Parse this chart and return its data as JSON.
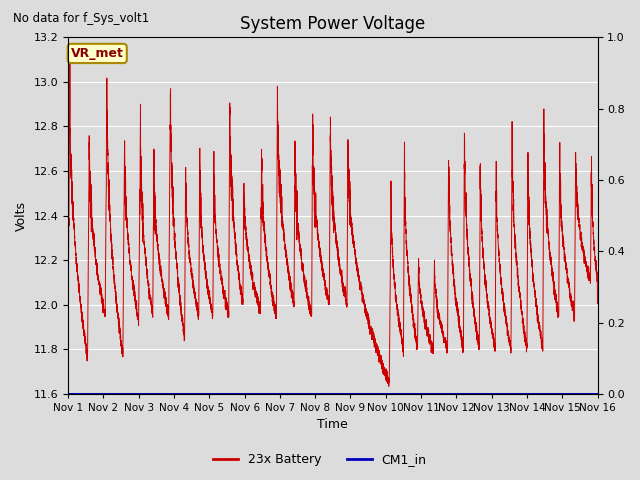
{
  "title": "System Power Voltage",
  "subtitle": "No data for f_Sys_volt1",
  "ylabel_left": "Volts",
  "xlabel": "Time",
  "ylim_left": [
    11.6,
    13.2
  ],
  "ylim_right": [
    0.0,
    1.0
  ],
  "yticks_left": [
    11.6,
    11.8,
    12.0,
    12.2,
    12.4,
    12.6,
    12.8,
    13.0,
    13.2
  ],
  "yticks_right": [
    0.0,
    0.2,
    0.4,
    0.6,
    0.8,
    1.0
  ],
  "xtick_labels": [
    "Nov 1",
    "Nov 2",
    "Nov 3",
    "Nov 4",
    "Nov 5",
    "Nov 6",
    "Nov 7",
    "Nov 8",
    "Nov 9",
    "Nov 10",
    "Nov 11",
    "Nov 12",
    "Nov 13",
    "Nov 14",
    "Nov 15",
    "Nov 16"
  ],
  "fig_bg": "#dcdcdc",
  "plot_bg": "#dcdcdc",
  "grid_color": "#ffffff",
  "line_color_battery": "#cc0000",
  "line_color_cm1": "#0000bb",
  "annotation_label": "VR_met",
  "annotation_bg": "#ffffcc",
  "annotation_border": "#aa8800",
  "legend_battery": "23x Battery",
  "legend_cm1": "CM1_in",
  "title_fontsize": 12,
  "axis_fontsize": 9,
  "tick_fontsize": 8
}
